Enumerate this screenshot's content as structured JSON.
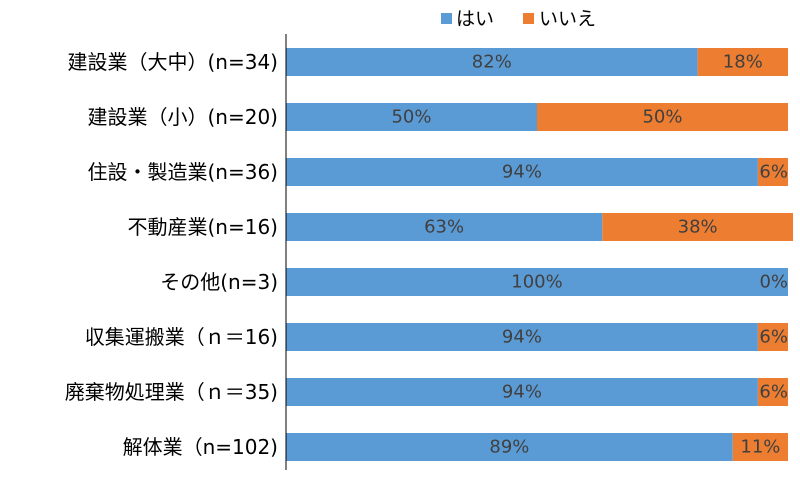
{
  "chart_data": {
    "type": "bar",
    "orientation": "horizontal",
    "stacked": true,
    "percent_stacked": true,
    "title": "",
    "xlabel": "",
    "ylabel": "",
    "xlim": [
      0,
      100
    ],
    "grid": false,
    "legend": {
      "position": "top",
      "entries": [
        {
          "name": "はい",
          "color": "#5B9BD5"
        },
        {
          "name": "いいえ",
          "color": "#ED7D31"
        }
      ]
    },
    "categories": [
      "建設業（大中）(n=34)",
      "建設業（小）(n=20)",
      "住設・製造業(n=36)",
      "不動産業(n=16)",
      "その他(n=3)",
      "収集運搬業（ｎ＝16)",
      "廃棄物処理業（ｎ＝35)",
      "解体業（n=102)"
    ],
    "series": [
      {
        "name": "はい",
        "color": "#5B9BD5",
        "values": [
          82,
          50,
          94,
          63,
          100,
          94,
          94,
          89
        ],
        "labels": [
          "82%",
          "50%",
          "94%",
          "63%",
          "100%",
          "94%",
          "94%",
          "89%"
        ]
      },
      {
        "name": "いいえ",
        "color": "#ED7D31",
        "values": [
          18,
          50,
          6,
          38,
          0,
          6,
          6,
          11
        ],
        "labels": [
          "18%",
          "50%",
          "6%",
          "38%",
          "0%",
          "6%",
          "6%",
          "11%"
        ]
      }
    ]
  }
}
